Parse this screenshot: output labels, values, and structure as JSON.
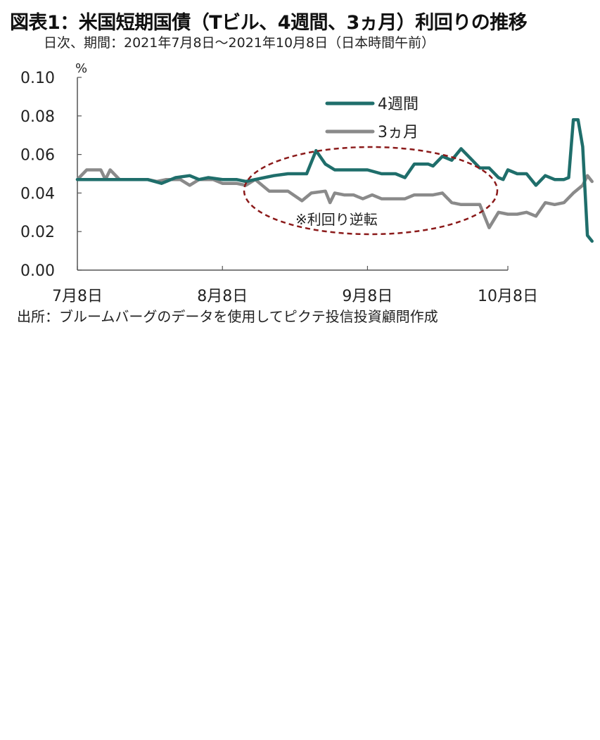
{
  "header": {
    "title": "図表1：米国短期国債（Tビル、4週間、3ヵ月）利回りの推移",
    "subtitle": "日次、期間：2021年7月8日～2021年10月8日（日本時間午前）"
  },
  "footer": {
    "source": "出所：ブルームバーグのデータを使用してピクテ投信投資顧問作成"
  },
  "colors": {
    "series_4w": "#1f6e6b",
    "series_3m": "#8a8a8a",
    "annotation": "#8b1a1a",
    "axis": "#555555"
  },
  "chart_data": {
    "type": "line",
    "ylabel": "%",
    "ylim": [
      0,
      0.1
    ],
    "yticks": [
      "0.10",
      "0.08",
      "0.06",
      "0.04",
      "0.02",
      "0.00"
    ],
    "ytick_values": [
      0.1,
      0.08,
      0.06,
      0.04,
      0.02,
      0.0
    ],
    "xticks": [
      "7月8日",
      "8月8日",
      "9月8日",
      "10月8日"
    ],
    "xtick_dates": [
      "2021-07-08",
      "2021-08-08",
      "2021-09-08",
      "2021-10-08"
    ],
    "legend_position": "top-right",
    "grid": false,
    "annotation": "※利回り逆転",
    "series": [
      {
        "name": "4週間",
        "color": "#1f6e6b",
        "points": [
          [
            "2021-07-08",
            0.047
          ],
          [
            "2021-07-12",
            0.047
          ],
          [
            "2021-07-15",
            0.047
          ],
          [
            "2021-07-19",
            0.047
          ],
          [
            "2021-07-23",
            0.047
          ],
          [
            "2021-07-26",
            0.045
          ],
          [
            "2021-07-29",
            0.048
          ],
          [
            "2021-08-01",
            0.049
          ],
          [
            "2021-08-03",
            0.047
          ],
          [
            "2021-08-05",
            0.048
          ],
          [
            "2021-08-08",
            0.047
          ],
          [
            "2021-08-11",
            0.047
          ],
          [
            "2021-08-13",
            0.046
          ],
          [
            "2021-08-15",
            0.047
          ],
          [
            "2021-08-19",
            0.049
          ],
          [
            "2021-08-22",
            0.05
          ],
          [
            "2021-08-24",
            0.05
          ],
          [
            "2021-08-26",
            0.05
          ],
          [
            "2021-08-28",
            0.062
          ],
          [
            "2021-08-30",
            0.055
          ],
          [
            "2021-09-01",
            0.052
          ],
          [
            "2021-09-04",
            0.052
          ],
          [
            "2021-09-08",
            0.052
          ],
          [
            "2021-09-11",
            0.05
          ],
          [
            "2021-09-14",
            0.05
          ],
          [
            "2021-09-16",
            0.048
          ],
          [
            "2021-09-18",
            0.055
          ],
          [
            "2021-09-21",
            0.055
          ],
          [
            "2021-09-22",
            0.054
          ],
          [
            "2021-09-24",
            0.059
          ],
          [
            "2021-09-26",
            0.057
          ],
          [
            "2021-09-28",
            0.063
          ],
          [
            "2021-09-30",
            0.058
          ],
          [
            "2021-10-02",
            0.053
          ],
          [
            "2021-10-04",
            0.053
          ],
          [
            "2021-10-06",
            0.048
          ],
          [
            "2021-10-07",
            0.047
          ],
          [
            "2021-10-08",
            0.052
          ],
          [
            "2021-10-10",
            0.05
          ],
          [
            "2021-10-12",
            0.05
          ],
          [
            "2021-10-14",
            0.044
          ],
          [
            "2021-10-16",
            0.049
          ],
          [
            "2021-10-18",
            0.047
          ],
          [
            "2021-10-19",
            0.047
          ],
          [
            "2021-10-20",
            0.047
          ],
          [
            "2021-10-21",
            0.048
          ],
          [
            "2021-10-22",
            0.078
          ],
          [
            "2021-10-23",
            0.078
          ],
          [
            "2021-10-24",
            0.064
          ],
          [
            "2021-10-25",
            0.018
          ],
          [
            "2021-10-26",
            0.015
          ]
        ]
      },
      {
        "name": "3ヵ月",
        "color": "#8a8a8a",
        "points": [
          [
            "2021-07-08",
            0.047
          ],
          [
            "2021-07-10",
            0.052
          ],
          [
            "2021-07-13",
            0.052
          ],
          [
            "2021-07-14",
            0.047
          ],
          [
            "2021-07-15",
            0.052
          ],
          [
            "2021-07-17",
            0.047
          ],
          [
            "2021-07-20",
            0.047
          ],
          [
            "2021-07-23",
            0.047
          ],
          [
            "2021-07-25",
            0.046
          ],
          [
            "2021-07-27",
            0.047
          ],
          [
            "2021-07-30",
            0.047
          ],
          [
            "2021-08-01",
            0.044
          ],
          [
            "2021-08-03",
            0.047
          ],
          [
            "2021-08-06",
            0.047
          ],
          [
            "2021-08-08",
            0.045
          ],
          [
            "2021-08-11",
            0.045
          ],
          [
            "2021-08-13",
            0.044
          ],
          [
            "2021-08-15",
            0.047
          ],
          [
            "2021-08-18",
            0.041
          ],
          [
            "2021-08-20",
            0.041
          ],
          [
            "2021-08-22",
            0.041
          ],
          [
            "2021-08-25",
            0.036
          ],
          [
            "2021-08-27",
            0.04
          ],
          [
            "2021-08-30",
            0.041
          ],
          [
            "2021-08-31",
            0.035
          ],
          [
            "2021-09-01",
            0.04
          ],
          [
            "2021-09-03",
            0.039
          ],
          [
            "2021-09-05",
            0.039
          ],
          [
            "2021-09-07",
            0.037
          ],
          [
            "2021-09-09",
            0.039
          ],
          [
            "2021-09-11",
            0.037
          ],
          [
            "2021-09-14",
            0.037
          ],
          [
            "2021-09-16",
            0.037
          ],
          [
            "2021-09-18",
            0.039
          ],
          [
            "2021-09-20",
            0.039
          ],
          [
            "2021-09-22",
            0.039
          ],
          [
            "2021-09-24",
            0.04
          ],
          [
            "2021-09-26",
            0.035
          ],
          [
            "2021-09-28",
            0.034
          ],
          [
            "2021-09-30",
            0.034
          ],
          [
            "2021-10-02",
            0.034
          ],
          [
            "2021-10-04",
            0.022
          ],
          [
            "2021-10-06",
            0.03
          ],
          [
            "2021-10-08",
            0.029
          ],
          [
            "2021-10-10",
            0.029
          ],
          [
            "2021-10-12",
            0.03
          ],
          [
            "2021-10-14",
            0.028
          ],
          [
            "2021-10-16",
            0.035
          ],
          [
            "2021-10-18",
            0.034
          ],
          [
            "2021-10-20",
            0.035
          ],
          [
            "2021-10-22",
            0.04
          ],
          [
            "2021-10-24",
            0.044
          ],
          [
            "2021-10-25",
            0.049
          ],
          [
            "2021-10-26",
            0.046
          ]
        ]
      }
    ]
  }
}
